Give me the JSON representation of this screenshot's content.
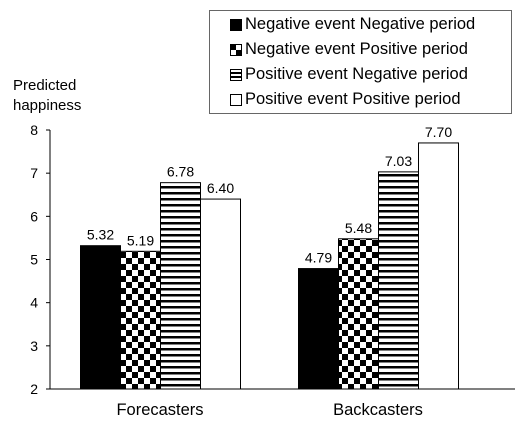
{
  "chart_data": {
    "type": "bar",
    "ylabel": "Predicted happiness",
    "ylabel_lines": [
      "Predicted",
      "happiness"
    ],
    "ylim": [
      2,
      8
    ],
    "yticks": [
      "2",
      "3",
      "4",
      "5",
      "6",
      "7",
      "8"
    ],
    "categories": [
      "Forecasters",
      "Backcasters"
    ],
    "series": [
      {
        "name": "Negative event Negative period",
        "values": [
          5.32,
          4.79
        ],
        "labels": [
          "5.32",
          "4.79"
        ],
        "pattern": "solid-black"
      },
      {
        "name": "Negative event Positive period",
        "values": [
          5.19,
          5.48
        ],
        "labels": [
          "5.19",
          "5.48"
        ],
        "pattern": "checker"
      },
      {
        "name": "Positive event Negative period",
        "values": [
          6.78,
          7.03
        ],
        "labels": [
          "6.78",
          "7.03"
        ],
        "pattern": "horizontal-stripes"
      },
      {
        "name": "Positive event Positive period",
        "values": [
          6.4,
          7.7
        ],
        "labels": [
          "6.40",
          "7.70"
        ],
        "pattern": "solid-white"
      }
    ],
    "grid": false,
    "legend_position": "top-right"
  }
}
